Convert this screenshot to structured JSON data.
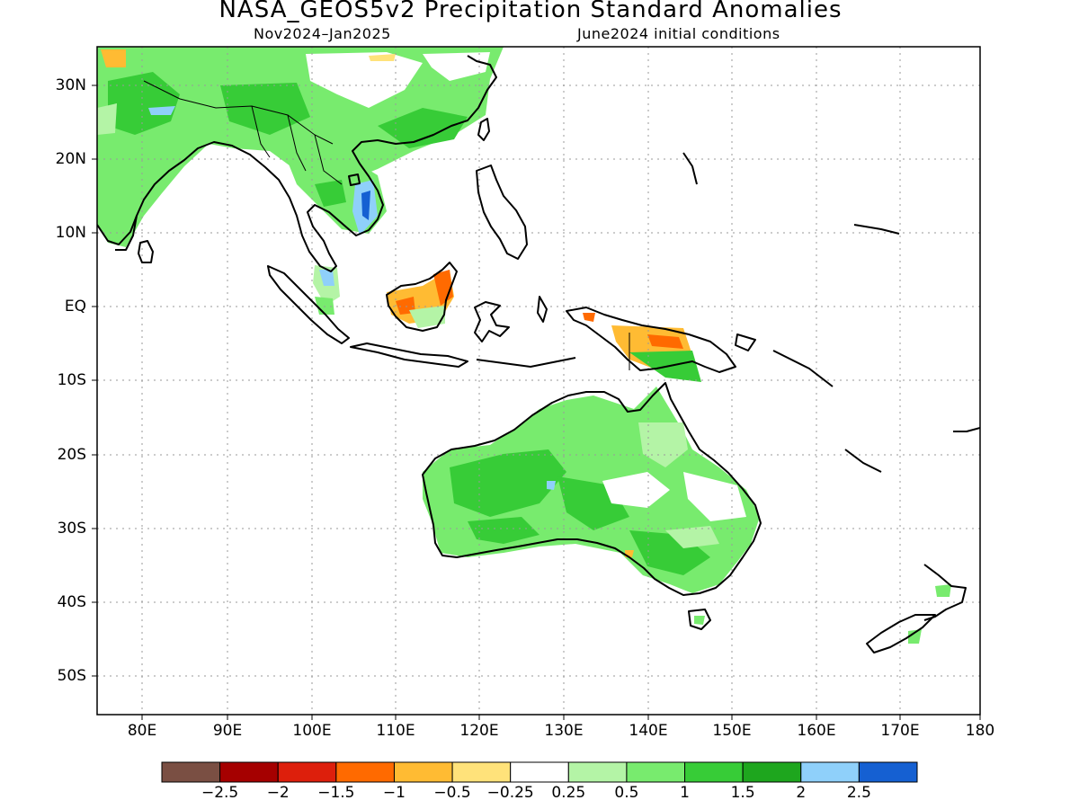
{
  "title": "NASA_GEOS5v2 Precipitation Standard Anomalies",
  "subtitle_period": "Nov2024–Jan2025",
  "subtitle_init": "June2024 initial conditions",
  "lat_ticks": [
    "30N",
    "20N",
    "10N",
    "EQ",
    "10S",
    "20S",
    "30S",
    "40S",
    "50S"
  ],
  "lon_ticks": [
    "80E",
    "90E",
    "100E",
    "110E",
    "120E",
    "130E",
    "140E",
    "150E",
    "160E",
    "170E",
    "180"
  ],
  "colorbar": {
    "colors": [
      "#7a4f43",
      "#a50000",
      "#dd1f0c",
      "#ff6a00",
      "#ffbb33",
      "#ffe27a",
      "#ffffff",
      "#b4f4a6",
      "#78eb6e",
      "#37cc37",
      "#1ea61e",
      "#8fd0fa",
      "#1560d2"
    ],
    "labels": [
      "−2.5",
      "−2",
      "−1.5",
      "−1",
      "−0.5",
      "−0.25",
      "0.25",
      "0.5",
      "1",
      "1.5",
      "2",
      "2.5"
    ]
  }
}
